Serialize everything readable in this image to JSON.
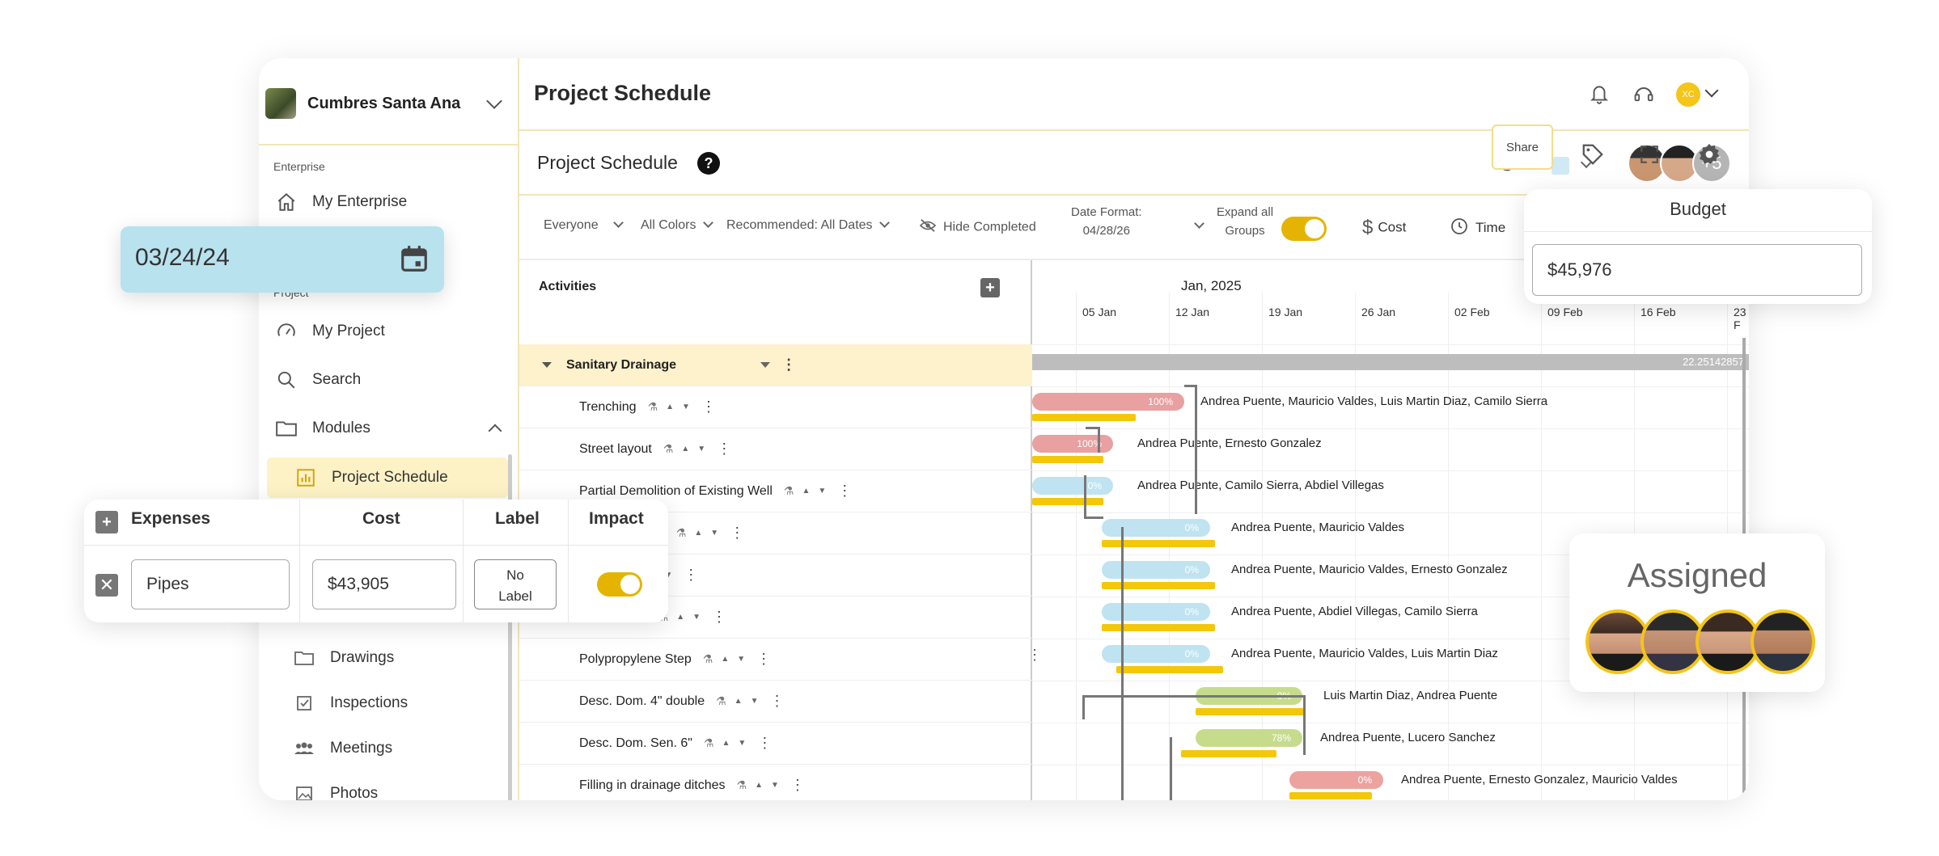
{
  "sidebar": {
    "brand": "Cumbres Santa Ana",
    "section_enterprise": "Enterprise",
    "my_enterprise": "My Enterprise",
    "section_project": "Project",
    "my_project": "My Project",
    "search": "Search",
    "modules": "Modules",
    "project_schedule": "Project Schedule",
    "drawings": "Drawings",
    "inspections": "Inspections",
    "meetings": "Meetings",
    "photos": "Photos"
  },
  "header": {
    "title": "Project Schedule",
    "user_initials": "XC"
  },
  "subheader": {
    "title": "Project Schedule",
    "help": "?",
    "avatar_more": "+5",
    "share": "Share"
  },
  "filters": {
    "everyone": "Everyone",
    "all_colors": "All Colors",
    "recommended": "Recommended: All Dates",
    "hide_completed": "Hide Completed",
    "date_format_label": "Date Format:",
    "date_format_value": "04/28/26",
    "expand_label_1": "Expand all",
    "expand_label_2": "Groups",
    "cost": "Cost",
    "time": "Time"
  },
  "activities": {
    "header": "Activities",
    "group": "Sanitary Drainage",
    "rows": [
      "Trenching",
      "Street layout",
      "Partial Demolition of Existing Well",
      "t. and Mattress",
      "Sleeve",
      "hole of 1.20",
      "Polypropylene Step",
      "Desc. Dom. 4\" double",
      "Desc. Dom. Sen. 6\"",
      "Filling in drainage ditches"
    ]
  },
  "gantt": {
    "month": "Jan, 2025",
    "ticks": [
      "05 Jan",
      "12 Jan",
      "19 Jan",
      "26 Jan",
      "02 Feb",
      "09 Feb",
      "16 Feb",
      "23 F"
    ],
    "group_total": "22.25142857",
    "bars": [
      {
        "pct": "100%",
        "assignees": "Andrea Puente, Mauricio Valdes, Luis Martin Diaz, Camilo Sierra",
        "color": "#e8a0a0"
      },
      {
        "pct": "100%",
        "assignees": "Andrea Puente, Ernesto Gonzalez",
        "color": "#e8a0a0"
      },
      {
        "pct": "0%",
        "assignees": "Andrea Puente, Camilo Sierra, Abdiel Villegas",
        "color": "#bfe3f0"
      },
      {
        "pct": "0%",
        "assignees": "Andrea Puente, Mauricio Valdes",
        "color": "#bfe3f0"
      },
      {
        "pct": "0%",
        "assignees": "Andrea Puente, Mauricio Valdes, Ernesto Gonzalez",
        "color": "#bfe3f0"
      },
      {
        "pct": "0%",
        "assignees": "Andrea Puente, Abdiel Villegas, Camilo Sierra",
        "color": "#bfe3f0"
      },
      {
        "pct": "0%",
        "assignees": "Andrea Puente, Mauricio Valdes, Luis Martin Diaz",
        "color": "#bfe3f0"
      },
      {
        "pct": "0%",
        "assignees": "Luis Martin Diaz, Andrea Puente",
        "color": "#c6dc8c"
      },
      {
        "pct": "78%",
        "assignees": "Andrea Puente, Lucero Sanchez",
        "color": "#c6dc8c"
      },
      {
        "pct": "0%",
        "assignees": "Andrea Puente, Ernesto Gonzalez, Mauricio Valdes",
        "color": "#eca3a0"
      }
    ]
  },
  "date_card": {
    "value": "03/24/24"
  },
  "expenses": {
    "col_expenses": "Expenses",
    "col_cost": "Cost",
    "col_label": "Label",
    "col_impact": "Impact",
    "name": "Pipes",
    "cost": "$43,905",
    "label_line1": "No",
    "label_line2": "Label"
  },
  "budget": {
    "title": "Budget",
    "value": "$45,976"
  },
  "assigned": {
    "title": "Assigned"
  }
}
